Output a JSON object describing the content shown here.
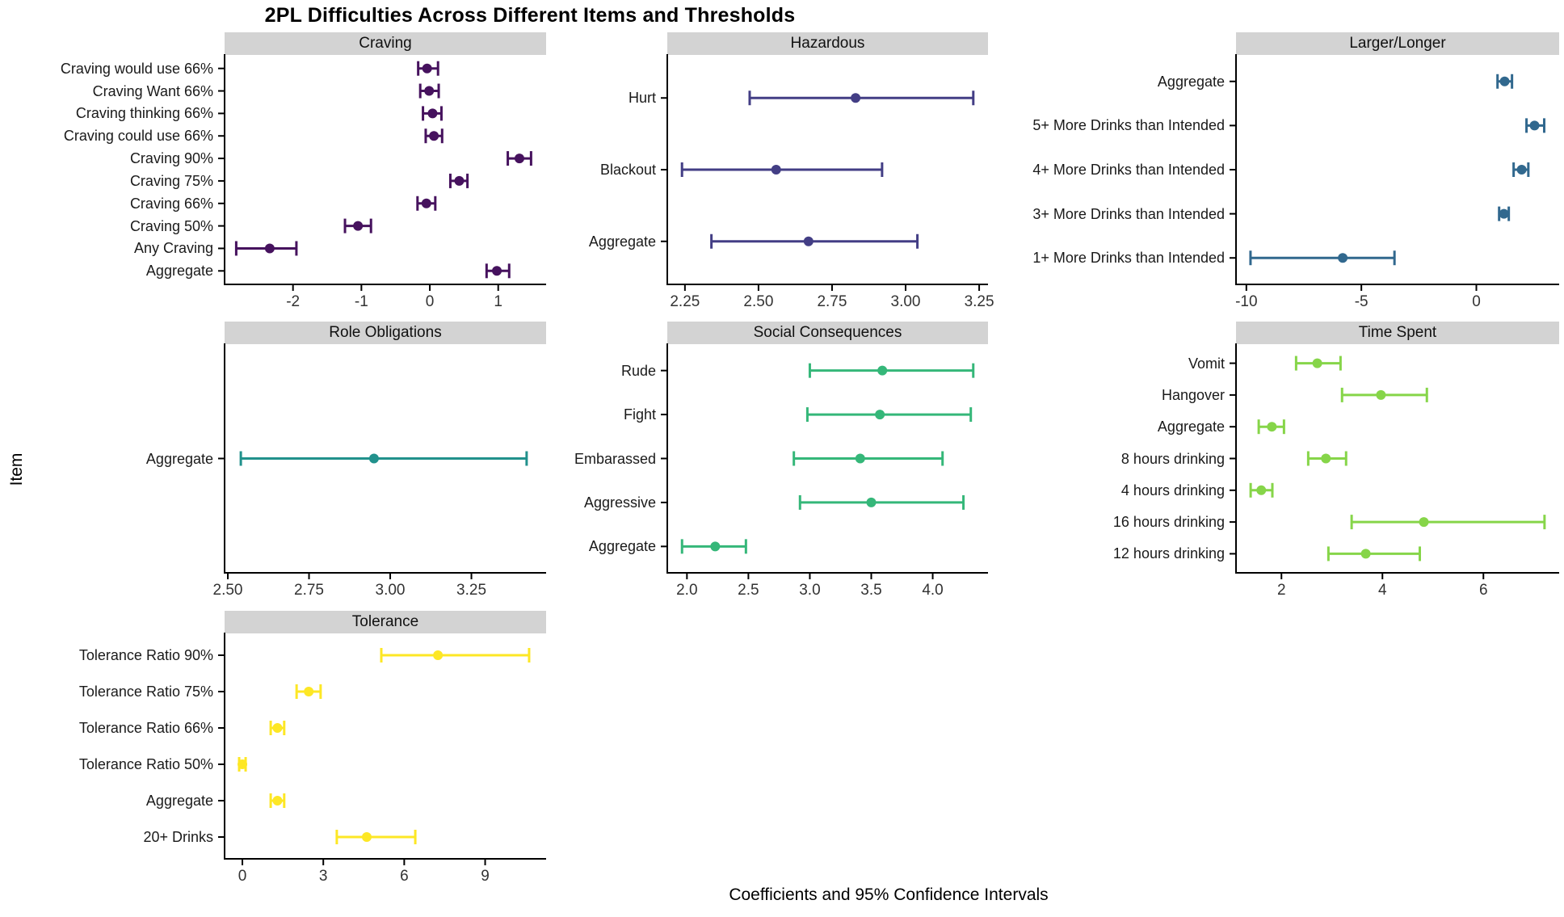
{
  "page": {
    "background": "#ffffff",
    "strip_background": "#d3d3d3",
    "axis_line_color": "#000000",
    "tick_label_color": "#333333"
  },
  "chart_data": {
    "type": "scatter",
    "subtype": "faceted-forest-plot-with-horizontal-error-bars",
    "title": "2PL Difficulties Across Different Items and Thresholds",
    "xlabel": "Coefficients and 95% Confidence Intervals",
    "ylabel": "Item",
    "grid": false,
    "legend_position": "none",
    "facets": [
      {
        "name": "Craving",
        "color": "#46125e",
        "xlim": [
          -3.0,
          1.7
        ],
        "xticks": [
          {
            "v": -2,
            "label": "-2"
          },
          {
            "v": -1,
            "label": "-1"
          },
          {
            "v": 0,
            "label": "0"
          },
          {
            "v": 1,
            "label": "1"
          }
        ],
        "items": [
          {
            "label": "Craving would use 66%",
            "value": -0.04,
            "lo": -0.17,
            "hi": 0.12
          },
          {
            "label": "Craving Want 66%",
            "value": -0.01,
            "lo": -0.14,
            "hi": 0.13
          },
          {
            "label": "Craving thinking 66%",
            "value": 0.04,
            "lo": -0.1,
            "hi": 0.17
          },
          {
            "label": "Craving could use 66%",
            "value": 0.06,
            "lo": -0.06,
            "hi": 0.18
          },
          {
            "label": "Craving 90%",
            "value": 1.31,
            "lo": 1.14,
            "hi": 1.48
          },
          {
            "label": "Craving 75%",
            "value": 0.43,
            "lo": 0.3,
            "hi": 0.55
          },
          {
            "label": "Craving 66%",
            "value": -0.05,
            "lo": -0.18,
            "hi": 0.08
          },
          {
            "label": "Craving 50%",
            "value": -1.05,
            "lo": -1.24,
            "hi": -0.86
          },
          {
            "label": "Any Craving",
            "value": -2.34,
            "lo": -2.83,
            "hi": -1.95
          },
          {
            "label": "Aggregate",
            "value": 0.98,
            "lo": 0.83,
            "hi": 1.16
          }
        ]
      },
      {
        "name": "Hazardous",
        "color": "#433e85",
        "xlim": [
          2.19,
          3.28
        ],
        "xticks": [
          {
            "v": 2.25,
            "label": "2.25"
          },
          {
            "v": 2.5,
            "label": "2.50"
          },
          {
            "v": 2.75,
            "label": "2.75"
          },
          {
            "v": 3.0,
            "label": "3.00"
          },
          {
            "v": 3.25,
            "label": "3.25"
          }
        ],
        "items": [
          {
            "label": "Hurt",
            "value": 2.83,
            "lo": 2.47,
            "hi": 3.23
          },
          {
            "label": "Blackout",
            "value": 2.56,
            "lo": 2.24,
            "hi": 2.92
          },
          {
            "label": "Aggregate",
            "value": 2.67,
            "lo": 2.34,
            "hi": 3.04
          }
        ]
      },
      {
        "name": "Larger/Longer",
        "color": "#31688e",
        "xlim": [
          -10.45,
          3.6
        ],
        "xticks": [
          {
            "v": -10,
            "label": "-10"
          },
          {
            "v": -5,
            "label": "-5"
          },
          {
            "v": 0,
            "label": "0"
          }
        ],
        "items": [
          {
            "label": "Aggregate",
            "value": 1.23,
            "lo": 0.92,
            "hi": 1.55
          },
          {
            "label": "5+ More Drinks than Intended",
            "value": 2.53,
            "lo": 2.18,
            "hi": 2.95
          },
          {
            "label": "4+ More Drinks than Intended",
            "value": 1.97,
            "lo": 1.62,
            "hi": 2.26
          },
          {
            "label": "3+ More Drinks than Intended",
            "value": 1.2,
            "lo": 0.99,
            "hi": 1.41
          },
          {
            "label": "1+ More Drinks than Intended",
            "value": -5.81,
            "lo": -9.82,
            "hi": -3.56
          }
        ]
      },
      {
        "name": "Role Obligations",
        "color": "#21918c",
        "xlim": [
          2.49,
          3.48
        ],
        "xticks": [
          {
            "v": 2.5,
            "label": "2.50"
          },
          {
            "v": 2.75,
            "label": "2.75"
          },
          {
            "v": 3.0,
            "label": "3.00"
          },
          {
            "v": 3.25,
            "label": "3.25"
          }
        ],
        "items": [
          {
            "label": "Aggregate",
            "value": 2.95,
            "lo": 2.54,
            "hi": 3.42
          }
        ]
      },
      {
        "name": "Social Consequences",
        "color": "#35b779",
        "xlim": [
          1.84,
          4.45
        ],
        "xticks": [
          {
            "v": 2.0,
            "label": "2.0"
          },
          {
            "v": 2.5,
            "label": "2.5"
          },
          {
            "v": 3.0,
            "label": "3.0"
          },
          {
            "v": 3.5,
            "label": "3.5"
          },
          {
            "v": 4.0,
            "label": "4.0"
          }
        ],
        "items": [
          {
            "label": "Rude",
            "value": 3.59,
            "lo": 3.0,
            "hi": 4.33
          },
          {
            "label": "Fight",
            "value": 3.57,
            "lo": 2.98,
            "hi": 4.31
          },
          {
            "label": "Embarassed",
            "value": 3.41,
            "lo": 2.87,
            "hi": 4.08
          },
          {
            "label": "Aggressive",
            "value": 3.5,
            "lo": 2.92,
            "hi": 4.25
          },
          {
            "label": "Aggregate",
            "value": 2.23,
            "lo": 1.96,
            "hi": 2.48
          }
        ]
      },
      {
        "name": "Time Spent",
        "color": "#86d549",
        "xlim": [
          1.1,
          7.5
        ],
        "xticks": [
          {
            "v": 2,
            "label": "2"
          },
          {
            "v": 4,
            "label": "4"
          },
          {
            "v": 6,
            "label": "6"
          }
        ],
        "items": [
          {
            "label": "Vomit",
            "value": 2.71,
            "lo": 2.29,
            "hi": 3.17
          },
          {
            "label": "Hangover",
            "value": 3.97,
            "lo": 3.2,
            "hi": 4.88
          },
          {
            "label": "Aggregate",
            "value": 1.81,
            "lo": 1.55,
            "hi": 2.05
          },
          {
            "label": "8 hours drinking",
            "value": 2.88,
            "lo": 2.53,
            "hi": 3.28
          },
          {
            "label": "4 hours drinking",
            "value": 1.6,
            "lo": 1.39,
            "hi": 1.82
          },
          {
            "label": "16 hours drinking",
            "value": 4.82,
            "lo": 3.39,
            "hi": 7.21
          },
          {
            "label": "12 hours drinking",
            "value": 3.67,
            "lo": 2.93,
            "hi": 4.74
          }
        ]
      },
      {
        "name": "Tolerance",
        "color": "#fde725",
        "xlim": [
          -0.66,
          11.26
        ],
        "xticks": [
          {
            "v": 0,
            "label": "0"
          },
          {
            "v": 3,
            "label": "3"
          },
          {
            "v": 6,
            "label": "6"
          },
          {
            "v": 9,
            "label": "9"
          }
        ],
        "items": [
          {
            "label": "Tolerance Ratio 90%",
            "value": 7.25,
            "lo": 5.15,
            "hi": 10.63
          },
          {
            "label": "Tolerance Ratio 75%",
            "value": 2.46,
            "lo": 2.01,
            "hi": 2.9
          },
          {
            "label": "Tolerance Ratio 66%",
            "value": 1.3,
            "lo": 1.05,
            "hi": 1.55
          },
          {
            "label": "Tolerance Ratio 50%",
            "value": 0.0,
            "lo": -0.12,
            "hi": 0.12
          },
          {
            "label": "Aggregate",
            "value": 1.3,
            "lo": 1.05,
            "hi": 1.55
          },
          {
            "label": "20+ Drinks",
            "value": 4.61,
            "lo": 3.5,
            "hi": 6.41
          }
        ]
      }
    ]
  }
}
